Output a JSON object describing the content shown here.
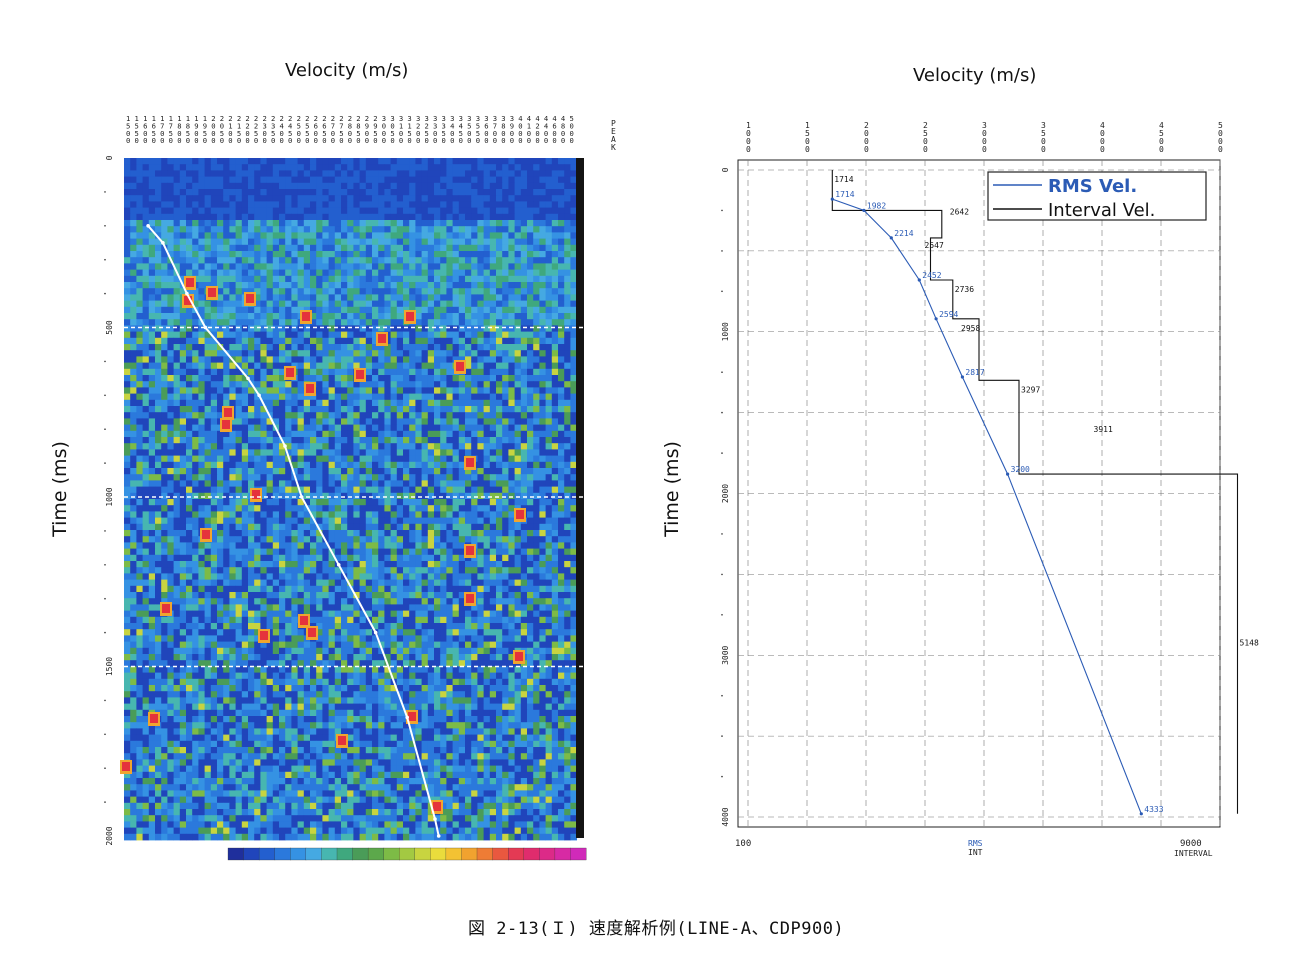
{
  "left": {
    "title": "Velocity (m/s)",
    "ylabel": "Time (ms)",
    "vel_ticks": [
      "1500",
      "1550",
      "1600",
      "1650",
      "1700",
      "1750",
      "1800",
      "1850",
      "1900",
      "1950",
      "2000",
      "2050",
      "2100",
      "2150",
      "2200",
      "2250",
      "2300",
      "2350",
      "2400",
      "2450",
      "2500",
      "2550",
      "2600",
      "2650",
      "2700",
      "2750",
      "2800",
      "2850",
      "2900",
      "2950",
      "3000",
      "3050",
      "3100",
      "3150",
      "3200",
      "3250",
      "3300",
      "3350",
      "3400",
      "3450",
      "3500",
      "3550",
      "3600",
      "3700",
      "3800",
      "3900",
      "4000",
      "4100",
      "4200",
      "4400",
      "4600",
      "4800",
      "5000"
    ],
    "peak_label": "PEAK",
    "time_ticks": [
      "0",
      "500",
      "1000",
      "1500",
      "2000"
    ],
    "chart_data": {
      "type": "heatmap",
      "xlabel": "Velocity (m/s)",
      "ylabel": "Time (ms)",
      "ylim": [
        0,
        2000
      ],
      "dashed_time_lines": [
        500,
        1000,
        1500
      ],
      "picked_velocity_curve": {
        "time": [
          200,
          250,
          400,
          500,
          650,
          700,
          850,
          1000,
          1200,
          1400,
          1650,
          1950,
          2000
        ],
        "velocity": [
          1630,
          1710,
          1840,
          1940,
          2170,
          2230,
          2370,
          2460,
          2660,
          2860,
          3030,
          3180,
          3200
        ]
      }
    },
    "colorbar": [
      "#1f2f9c",
      "#2045bb",
      "#235fcf",
      "#2b79dc",
      "#3592e3",
      "#45a9e2",
      "#47b6b0",
      "#3fa87e",
      "#4a9c58",
      "#5ca84b",
      "#7dbb46",
      "#a3c942",
      "#c8d440",
      "#eadc3c",
      "#f3c233",
      "#f1a22f",
      "#ee7c35",
      "#e9583f",
      "#e43a54",
      "#e02c6d",
      "#dc2a88",
      "#d72aa4",
      "#d02ab9"
    ]
  },
  "right": {
    "title": "Velocity (m/s)",
    "ylabel": "Time (ms)",
    "x_ticks": [
      "1000",
      "1500",
      "2000",
      "2500",
      "3000",
      "3500",
      "4000",
      "4500",
      "5000"
    ],
    "y_ticks": [
      "0",
      "1000",
      "2000",
      "3000",
      "4000"
    ],
    "bottom_left": "100",
    "bottom_right_value": "9000",
    "bottom_right_label": "INTERVAL",
    "footer_rms": "RMS",
    "footer_int": "INT",
    "legend": {
      "rms": "RMS  Vel.",
      "interval": "Interval  Vel."
    },
    "colors": {
      "rms": "#2b5bb5",
      "interval": "#111111"
    },
    "chart_data": {
      "type": "line",
      "xlabel": "Velocity (m/s)",
      "ylabel": "Time (ms)",
      "xlim": [
        1000,
        5000
      ],
      "ylim": [
        0,
        4000
      ],
      "series": [
        {
          "name": "RMS  Vel.",
          "points": [
            [
              1714,
              180
            ],
            [
              1982,
              250
            ],
            [
              2214,
              420
            ],
            [
              2452,
              680
            ],
            [
              2594,
              920
            ],
            [
              2817,
              1280
            ],
            [
              3200,
              1880
            ],
            [
              4333,
              3980
            ]
          ],
          "labels": [
            "1714",
            "1982",
            "2214",
            "2452",
            "2594",
            "2817",
            "3200",
            "4333"
          ]
        },
        {
          "name": "Interval  Vel.",
          "steps": [
            [
              1714,
              0,
              250
            ],
            [
              2642,
              250,
              420
            ],
            [
              2547,
              420,
              680
            ],
            [
              2736,
              680,
              920
            ],
            [
              2958,
              920,
              1300
            ],
            [
              3297,
              1300,
              1880
            ],
            [
              3911,
              1880,
              1880
            ],
            [
              5148,
              1880,
              3980
            ]
          ],
          "labels": [
            "1714",
            "2642",
            "2547",
            "2736",
            "2958",
            "3297",
            "3911",
            "5148"
          ]
        }
      ]
    }
  },
  "caption": "図 2-13(Ｉ)  速度解析例(LINE-A、CDP900)"
}
